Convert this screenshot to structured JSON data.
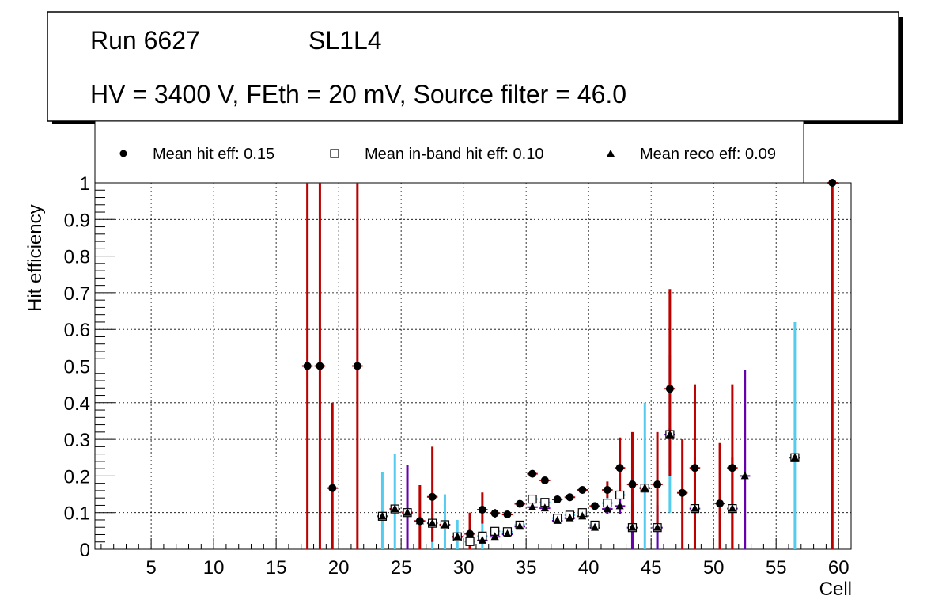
{
  "header": {
    "run_label": "Run 6627",
    "layer_label": "SL1L4",
    "conditions": "HV = 3400 V, FEth = 20 mV, Source filter = 46.0"
  },
  "legend": {
    "hit": "Mean hit  eff: 0.15",
    "inband": "Mean in-band hit eff: 0.10",
    "reco": "Mean reco eff: 0.09"
  },
  "colors": {
    "hit_error": "#bb0000",
    "inband_error": "#55ccee",
    "reco_error": "#6600aa",
    "grid": "#000000",
    "marker": "#000000"
  },
  "chart_data": {
    "type": "scatter",
    "title": "",
    "xlabel": "Cell",
    "ylabel": "Hit efficiency",
    "xlim": [
      0.5,
      61
    ],
    "ylim": [
      0,
      1
    ],
    "xticks": [
      5,
      10,
      15,
      20,
      25,
      30,
      35,
      40,
      45,
      50,
      55,
      60
    ],
    "yticks": [
      0,
      0.1,
      0.2,
      0.3,
      0.4,
      0.5,
      0.6,
      0.7,
      0.8,
      0.9,
      1
    ],
    "xtick_labels": [
      "5",
      "10",
      "15",
      "20",
      "25",
      "30",
      "35",
      "40",
      "45",
      "50",
      "55",
      "60"
    ],
    "ytick_labels": [
      "0",
      "0.1",
      "0.2",
      "0.3",
      "0.4",
      "0.5",
      "0.6",
      "0.7",
      "0.8",
      "0.9",
      "1"
    ],
    "grid": true,
    "series": [
      {
        "name": "Mean hit eff",
        "marker": "circle",
        "points": [
          {
            "x": 17.5,
            "y": 0.5,
            "lo": 0.0,
            "hi": 1.0
          },
          {
            "x": 18.5,
            "y": 0.5,
            "lo": 0.0,
            "hi": 1.0
          },
          {
            "x": 19.5,
            "y": 0.167,
            "lo": 0.0,
            "hi": 0.4
          },
          {
            "x": 21.5,
            "y": 0.5,
            "lo": 0.0,
            "hi": 1.0
          },
          {
            "x": 23.5,
            "y": 0.09,
            "lo": 0.085,
            "hi": 0.095
          },
          {
            "x": 24.5,
            "y": 0.11,
            "lo": 0.105,
            "hi": 0.115
          },
          {
            "x": 25.5,
            "y": 0.1,
            "lo": 0.095,
            "hi": 0.105
          },
          {
            "x": 26.5,
            "y": 0.077,
            "lo": 0.0,
            "hi": 0.175
          },
          {
            "x": 27.5,
            "y": 0.143,
            "lo": 0.02,
            "hi": 0.28
          },
          {
            "x": 28.5,
            "y": 0.067,
            "lo": 0.06,
            "hi": 0.075
          },
          {
            "x": 29.5,
            "y": 0.034,
            "lo": 0.03,
            "hi": 0.04
          },
          {
            "x": 30.5,
            "y": 0.042,
            "lo": 0.0,
            "hi": 0.1
          },
          {
            "x": 31.5,
            "y": 0.108,
            "lo": 0.07,
            "hi": 0.155
          },
          {
            "x": 32.5,
            "y": 0.098,
            "lo": 0.085,
            "hi": 0.11
          },
          {
            "x": 33.5,
            "y": 0.095,
            "lo": 0.09,
            "hi": 0.1
          },
          {
            "x": 34.5,
            "y": 0.124,
            "lo": 0.12,
            "hi": 0.13
          },
          {
            "x": 35.5,
            "y": 0.206,
            "lo": 0.2,
            "hi": 0.21
          },
          {
            "x": 36.5,
            "y": 0.188,
            "lo": 0.18,
            "hi": 0.195
          },
          {
            "x": 37.5,
            "y": 0.136,
            "lo": 0.13,
            "hi": 0.14
          },
          {
            "x": 38.5,
            "y": 0.142,
            "lo": 0.135,
            "hi": 0.15
          },
          {
            "x": 39.5,
            "y": 0.162,
            "lo": 0.155,
            "hi": 0.17
          },
          {
            "x": 40.5,
            "y": 0.118,
            "lo": 0.11,
            "hi": 0.125
          },
          {
            "x": 41.5,
            "y": 0.162,
            "lo": 0.14,
            "hi": 0.185
          },
          {
            "x": 42.5,
            "y": 0.222,
            "lo": 0.14,
            "hi": 0.305
          },
          {
            "x": 43.5,
            "y": 0.177,
            "lo": 0.05,
            "hi": 0.32
          },
          {
            "x": 44.5,
            "y": 0.167,
            "lo": 0.16,
            "hi": 0.175
          },
          {
            "x": 45.5,
            "y": 0.177,
            "lo": 0.05,
            "hi": 0.32
          },
          {
            "x": 46.5,
            "y": 0.438,
            "lo": 0.2,
            "hi": 0.71
          },
          {
            "x": 47.5,
            "y": 0.154,
            "lo": 0.0,
            "hi": 0.3
          },
          {
            "x": 48.5,
            "y": 0.222,
            "lo": 0.0,
            "hi": 0.45
          },
          {
            "x": 50.5,
            "y": 0.125,
            "lo": 0.0,
            "hi": 0.29
          },
          {
            "x": 51.5,
            "y": 0.222,
            "lo": 0.0,
            "hi": 0.45
          },
          {
            "x": 59.5,
            "y": 1.0,
            "lo": 0.0,
            "hi": 1.0
          }
        ]
      },
      {
        "name": "Mean in-band hit eff",
        "marker": "open-square",
        "points": [
          {
            "x": 23.5,
            "y": 0.09,
            "lo": 0.0,
            "hi": 0.21
          },
          {
            "x": 24.5,
            "y": 0.11,
            "lo": 0.0,
            "hi": 0.26
          },
          {
            "x": 25.5,
            "y": 0.1,
            "lo": 0.09,
            "hi": 0.11
          },
          {
            "x": 27.5,
            "y": 0.071,
            "lo": 0.0,
            "hi": 0.15
          },
          {
            "x": 28.5,
            "y": 0.067,
            "lo": 0.0,
            "hi": 0.15
          },
          {
            "x": 29.5,
            "y": 0.034,
            "lo": 0.0,
            "hi": 0.08
          },
          {
            "x": 30.5,
            "y": 0.021,
            "lo": 0.0,
            "hi": 0.06
          },
          {
            "x": 31.5,
            "y": 0.036,
            "lo": 0.0,
            "hi": 0.08
          },
          {
            "x": 32.5,
            "y": 0.049,
            "lo": 0.04,
            "hi": 0.058
          },
          {
            "x": 33.5,
            "y": 0.048,
            "lo": 0.04,
            "hi": 0.056
          },
          {
            "x": 34.5,
            "y": 0.066,
            "lo": 0.06,
            "hi": 0.072
          },
          {
            "x": 35.5,
            "y": 0.137,
            "lo": 0.13,
            "hi": 0.145
          },
          {
            "x": 36.5,
            "y": 0.128,
            "lo": 0.12,
            "hi": 0.135
          },
          {
            "x": 37.5,
            "y": 0.085,
            "lo": 0.08,
            "hi": 0.09
          },
          {
            "x": 38.5,
            "y": 0.093,
            "lo": 0.087,
            "hi": 0.1
          },
          {
            "x": 39.5,
            "y": 0.1,
            "lo": 0.094,
            "hi": 0.108
          },
          {
            "x": 40.5,
            "y": 0.066,
            "lo": 0.058,
            "hi": 0.074
          },
          {
            "x": 41.5,
            "y": 0.126,
            "lo": 0.11,
            "hi": 0.14
          },
          {
            "x": 42.5,
            "y": 0.148,
            "lo": 0.12,
            "hi": 0.18
          },
          {
            "x": 43.5,
            "y": 0.059,
            "lo": 0.0,
            "hi": 0.13
          },
          {
            "x": 44.5,
            "y": 0.167,
            "lo": 0.0,
            "hi": 0.4
          },
          {
            "x": 45.5,
            "y": 0.059,
            "lo": 0.0,
            "hi": 0.13
          },
          {
            "x": 46.5,
            "y": 0.313,
            "lo": 0.1,
            "hi": 0.53
          },
          {
            "x": 48.5,
            "y": 0.111,
            "lo": 0.0,
            "hi": 0.25
          },
          {
            "x": 51.5,
            "y": 0.111,
            "lo": 0.0,
            "hi": 0.25
          },
          {
            "x": 56.5,
            "y": 0.25,
            "lo": 0.0,
            "hi": 0.62
          }
        ]
      },
      {
        "name": "Mean reco eff",
        "marker": "filled-triangle",
        "points": [
          {
            "x": 23.5,
            "y": 0.09,
            "lo": 0.085,
            "hi": 0.095
          },
          {
            "x": 24.5,
            "y": 0.11,
            "lo": 0.105,
            "hi": 0.115
          },
          {
            "x": 25.5,
            "y": 0.1,
            "lo": 0.0,
            "hi": 0.23
          },
          {
            "x": 26.5,
            "y": 0.077,
            "lo": 0.07,
            "hi": 0.085
          },
          {
            "x": 27.5,
            "y": 0.071,
            "lo": 0.065,
            "hi": 0.078
          },
          {
            "x": 28.5,
            "y": 0.067,
            "lo": 0.06,
            "hi": 0.074
          },
          {
            "x": 29.5,
            "y": 0.034,
            "lo": 0.03,
            "hi": 0.038
          },
          {
            "x": 30.5,
            "y": 0.042,
            "lo": 0.035,
            "hi": 0.05
          },
          {
            "x": 31.5,
            "y": 0.024,
            "lo": 0.02,
            "hi": 0.028
          },
          {
            "x": 32.5,
            "y": 0.034,
            "lo": 0.03,
            "hi": 0.038
          },
          {
            "x": 33.5,
            "y": 0.041,
            "lo": 0.036,
            "hi": 0.046
          },
          {
            "x": 34.5,
            "y": 0.062,
            "lo": 0.056,
            "hi": 0.068
          },
          {
            "x": 35.5,
            "y": 0.115,
            "lo": 0.11,
            "hi": 0.12
          },
          {
            "x": 36.5,
            "y": 0.112,
            "lo": 0.106,
            "hi": 0.118
          },
          {
            "x": 37.5,
            "y": 0.078,
            "lo": 0.073,
            "hi": 0.083
          },
          {
            "x": 38.5,
            "y": 0.085,
            "lo": 0.08,
            "hi": 0.09
          },
          {
            "x": 39.5,
            "y": 0.09,
            "lo": 0.084,
            "hi": 0.096
          },
          {
            "x": 40.5,
            "y": 0.059,
            "lo": 0.053,
            "hi": 0.065
          },
          {
            "x": 41.5,
            "y": 0.11,
            "lo": 0.095,
            "hi": 0.125
          },
          {
            "x": 42.5,
            "y": 0.118,
            "lo": 0.095,
            "hi": 0.14
          },
          {
            "x": 43.5,
            "y": 0.059,
            "lo": 0.0,
            "hi": 0.12
          },
          {
            "x": 44.5,
            "y": 0.167,
            "lo": 0.16,
            "hi": 0.175
          },
          {
            "x": 45.5,
            "y": 0.059,
            "lo": 0.0,
            "hi": 0.12
          },
          {
            "x": 46.5,
            "y": 0.313,
            "lo": 0.3,
            "hi": 0.33
          },
          {
            "x": 48.5,
            "y": 0.111,
            "lo": 0.0,
            "hi": 0.25
          },
          {
            "x": 51.5,
            "y": 0.111,
            "lo": 0.0,
            "hi": 0.25
          },
          {
            "x": 52.5,
            "y": 0.2,
            "lo": 0.0,
            "hi": 0.49
          },
          {
            "x": 56.5,
            "y": 0.25,
            "lo": 0.24,
            "hi": 0.26
          }
        ]
      }
    ]
  }
}
